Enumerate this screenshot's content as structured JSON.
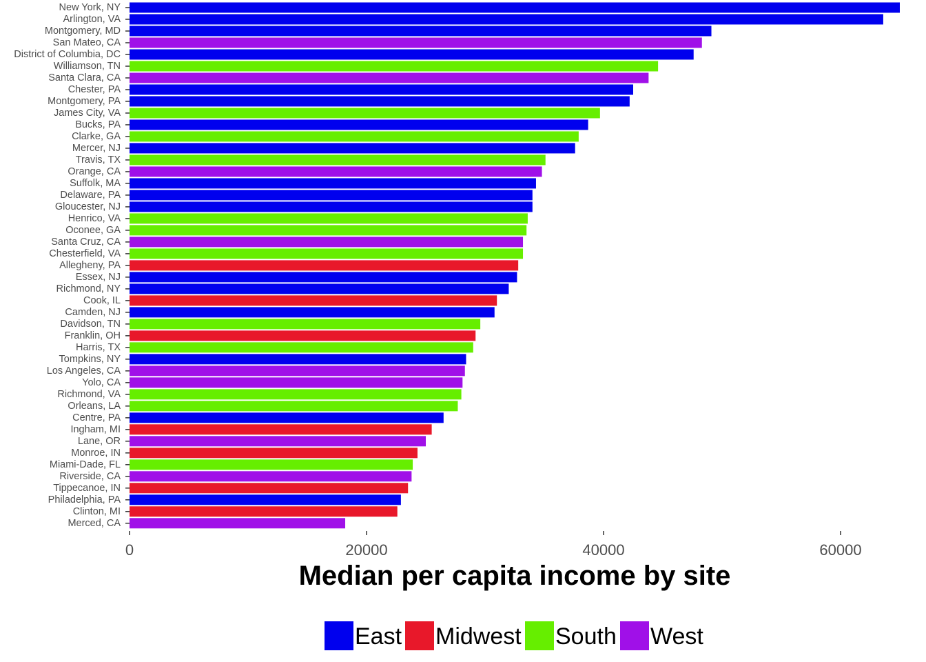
{
  "chart_data": {
    "type": "bar",
    "orientation": "horizontal",
    "title": "",
    "xlabel": "Median per capita income by site",
    "ylabel": "",
    "xlim": [
      0,
      65000
    ],
    "x_ticks": [
      0,
      20000,
      40000,
      60000
    ],
    "grid": false,
    "legend_placement": "bottom",
    "regions": [
      {
        "name": "East",
        "color": "#0000ee"
      },
      {
        "name": "Midwest",
        "color": "#e8182a"
      },
      {
        "name": "South",
        "color": "#66ee00"
      },
      {
        "name": "West",
        "color": "#a010e8"
      }
    ],
    "bars": [
      {
        "label": "New York, NY",
        "value": 65000,
        "region": "East"
      },
      {
        "label": "Arlington, VA",
        "value": 63600,
        "region": "East"
      },
      {
        "label": "Montgomery, MD",
        "value": 49100,
        "region": "East"
      },
      {
        "label": "San Mateo, CA",
        "value": 48300,
        "region": "West"
      },
      {
        "label": "District of Columbia, DC",
        "value": 47600,
        "region": "East"
      },
      {
        "label": "Williamson, TN",
        "value": 44600,
        "region": "South"
      },
      {
        "label": "Santa Clara, CA",
        "value": 43800,
        "region": "West"
      },
      {
        "label": "Chester, PA",
        "value": 42500,
        "region": "East"
      },
      {
        "label": "Montgomery, PA",
        "value": 42200,
        "region": "East"
      },
      {
        "label": "James City, VA",
        "value": 39700,
        "region": "South"
      },
      {
        "label": "Bucks, PA",
        "value": 38700,
        "region": "East"
      },
      {
        "label": "Clarke, GA",
        "value": 37900,
        "region": "South"
      },
      {
        "label": "Mercer, NJ",
        "value": 37600,
        "region": "East"
      },
      {
        "label": "Travis, TX",
        "value": 35100,
        "region": "South"
      },
      {
        "label": "Orange, CA",
        "value": 34800,
        "region": "West"
      },
      {
        "label": "Suffolk, MA",
        "value": 34300,
        "region": "East"
      },
      {
        "label": "Delaware, PA",
        "value": 34000,
        "region": "East"
      },
      {
        "label": "Gloucester, NJ",
        "value": 34000,
        "region": "East"
      },
      {
        "label": "Henrico, VA",
        "value": 33600,
        "region": "South"
      },
      {
        "label": "Oconee, GA",
        "value": 33500,
        "region": "South"
      },
      {
        "label": "Santa Cruz, CA",
        "value": 33200,
        "region": "West"
      },
      {
        "label": "Chesterfield, VA",
        "value": 33200,
        "region": "South"
      },
      {
        "label": "Allegheny, PA",
        "value": 32800,
        "region": "Midwest"
      },
      {
        "label": "Essex, NJ",
        "value": 32700,
        "region": "East"
      },
      {
        "label": "Richmond, NY",
        "value": 32000,
        "region": "East"
      },
      {
        "label": "Cook, IL",
        "value": 31000,
        "region": "Midwest"
      },
      {
        "label": "Camden, NJ",
        "value": 30800,
        "region": "East"
      },
      {
        "label": "Davidson, TN",
        "value": 29600,
        "region": "South"
      },
      {
        "label": "Franklin, OH",
        "value": 29200,
        "region": "Midwest"
      },
      {
        "label": "Harris, TX",
        "value": 29000,
        "region": "South"
      },
      {
        "label": "Tompkins, NY",
        "value": 28400,
        "region": "East"
      },
      {
        "label": "Los Angeles, CA",
        "value": 28300,
        "region": "West"
      },
      {
        "label": "Yolo, CA",
        "value": 28100,
        "region": "West"
      },
      {
        "label": "Richmond, VA",
        "value": 28000,
        "region": "South"
      },
      {
        "label": "Orleans, LA",
        "value": 27700,
        "region": "South"
      },
      {
        "label": "Centre, PA",
        "value": 26500,
        "region": "East"
      },
      {
        "label": "Ingham, MI",
        "value": 25500,
        "region": "Midwest"
      },
      {
        "label": "Lane, OR",
        "value": 25000,
        "region": "West"
      },
      {
        "label": "Monroe, IN",
        "value": 24300,
        "region": "Midwest"
      },
      {
        "label": "Miami-Dade, FL",
        "value": 23900,
        "region": "South"
      },
      {
        "label": "Riverside, CA",
        "value": 23800,
        "region": "West"
      },
      {
        "label": "Tippecanoe, IN",
        "value": 23500,
        "region": "Midwest"
      },
      {
        "label": "Philadelphia, PA",
        "value": 22900,
        "region": "East"
      },
      {
        "label": "Clinton, MI",
        "value": 22600,
        "region": "Midwest"
      },
      {
        "label": "Merced, CA",
        "value": 18200,
        "region": "West"
      }
    ]
  }
}
